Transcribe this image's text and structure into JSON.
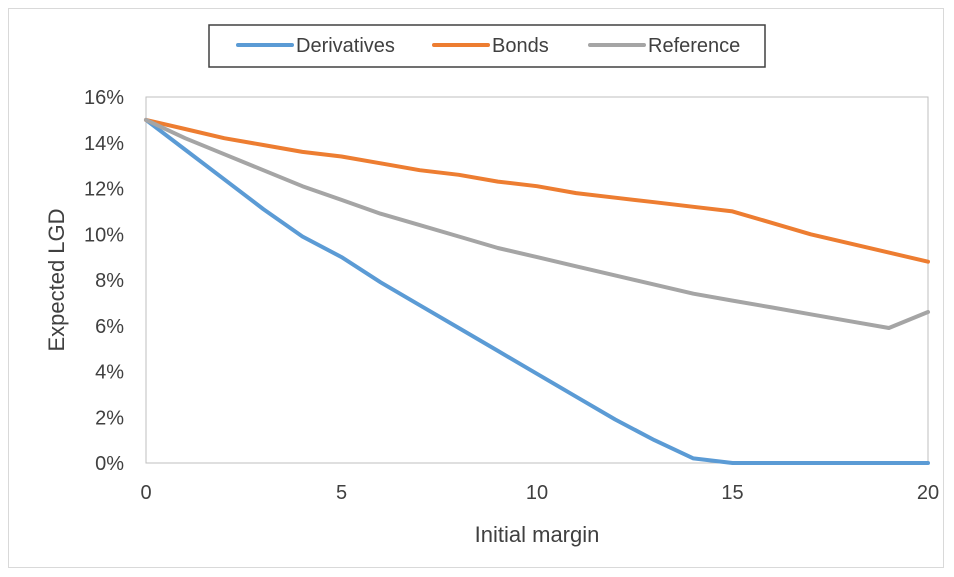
{
  "chart_data": {
    "type": "line",
    "title": "",
    "xlabel": "Initial margin",
    "ylabel": "Expected LGD",
    "xlim": [
      0,
      20
    ],
    "ylim": [
      0,
      0.16
    ],
    "x_ticks": [
      "0",
      "5",
      "10",
      "15",
      "20"
    ],
    "y_ticks": [
      "0%",
      "2%",
      "4%",
      "6%",
      "8%",
      "10%",
      "12%",
      "14%",
      "16%"
    ],
    "grid": false,
    "legend_position": "top",
    "x": [
      0,
      1,
      2,
      3,
      4,
      5,
      6,
      7,
      8,
      9,
      10,
      11,
      12,
      13,
      14,
      15,
      16,
      17,
      18,
      19,
      20
    ],
    "series": [
      {
        "name": "Derivatives",
        "color": "#5b9bd5",
        "values": [
          0.15,
          0.137,
          0.124,
          0.111,
          0.099,
          0.09,
          0.079,
          0.069,
          0.059,
          0.049,
          0.039,
          0.029,
          0.019,
          0.01,
          0.002,
          0.0,
          0.0,
          0.0,
          0.0,
          0.0,
          0.0
        ]
      },
      {
        "name": "Bonds",
        "color": "#ed7d31",
        "values": [
          0.15,
          0.146,
          0.142,
          0.139,
          0.136,
          0.134,
          0.131,
          0.128,
          0.126,
          0.123,
          0.121,
          0.118,
          0.116,
          0.114,
          0.112,
          0.11,
          0.105,
          0.1,
          0.096,
          0.092,
          0.088
        ]
      },
      {
        "name": "Reference",
        "color": "#a5a5a5",
        "values": [
          0.15,
          0.142,
          0.135,
          0.128,
          0.121,
          0.115,
          0.109,
          0.104,
          0.099,
          0.094,
          0.09,
          0.086,
          0.082,
          0.078,
          0.074,
          0.071,
          0.068,
          0.065,
          0.062,
          0.059,
          0.066
        ]
      }
    ]
  }
}
